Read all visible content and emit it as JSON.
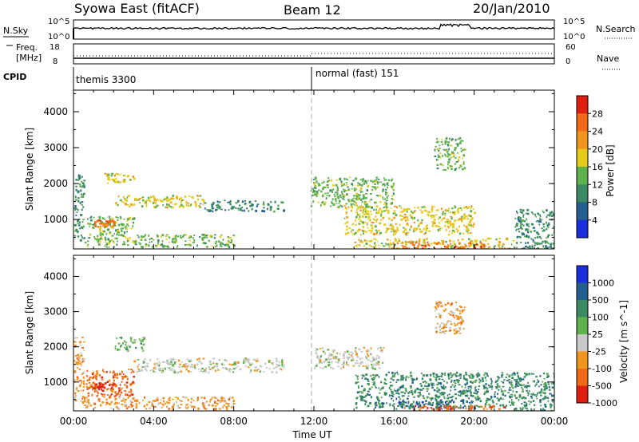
{
  "header": {
    "title": "Syowa East (fitACF)",
    "beam": "Beam 12",
    "date": "20/Jan/2010"
  },
  "sky_panel": {
    "left_label": "N.Sky",
    "left_ticks": [
      "10^5",
      "10^0"
    ],
    "right_label": "N.Search",
    "right_ticks": [
      "10^5",
      "10^0"
    ]
  },
  "freq_panel": {
    "left_label_1": "Freq.",
    "left_label_2": "[MHz]",
    "left_ticks": [
      "18",
      "8"
    ],
    "right_label": "Nave",
    "right_ticks": [
      "60",
      "0"
    ]
  },
  "cpid": {
    "label": "CPID",
    "modes": [
      {
        "name": "themis 3300",
        "start_hour": 0
      },
      {
        "name": "normal (fast) 151",
        "start_hour": 12
      }
    ]
  },
  "chart_data": [
    {
      "type": "heatmap",
      "name": "Power",
      "ylabel": "Slant Range [km]",
      "yticks": [
        "1000",
        "2000",
        "3000",
        "4000"
      ],
      "ylim": [
        180,
        4600
      ],
      "xlim": [
        0,
        24
      ],
      "colorbar_label": "Power [dB]",
      "colorbar_ticks": [
        "4",
        "8",
        "12",
        "16",
        "20",
        "24",
        "28"
      ],
      "colors": [
        "#1c2fe0",
        "#255f8f",
        "#3a8a62",
        "#5fb14c",
        "#e5cc1a",
        "#f0961e",
        "#f06a17",
        "#e01f10"
      ],
      "features": [
        {
          "hours": [
            0.0,
            0.5
          ],
          "range_km": [
            400,
            2300
          ],
          "power_db": 8
        },
        {
          "hours": [
            0.6,
            3.0
          ],
          "range_km": [
            600,
            1100
          ],
          "power_db": 14
        },
        {
          "hours": [
            1.0,
            2.0
          ],
          "range_km": [
            800,
            1000
          ],
          "power_db": 26
        },
        {
          "hours": [
            1.5,
            3.0
          ],
          "range_km": [
            2000,
            2300
          ],
          "power_db": 16
        },
        {
          "hours": [
            2.0,
            6.5
          ],
          "range_km": [
            1350,
            1700
          ],
          "power_db": 18
        },
        {
          "hours": [
            0.5,
            8.0
          ],
          "range_km": [
            250,
            600
          ],
          "power_db": 12
        },
        {
          "hours": [
            6.5,
            10.5
          ],
          "range_km": [
            1250,
            1550
          ],
          "power_db": 10
        },
        {
          "hours": [
            11.8,
            16.0
          ],
          "range_km": [
            1350,
            2200
          ],
          "power_db": 12
        },
        {
          "hours": [
            13.5,
            20.0
          ],
          "range_km": [
            600,
            1400
          ],
          "power_db": 16
        },
        {
          "hours": [
            14.0,
            22.0
          ],
          "range_km": [
            180,
            500
          ],
          "power_db": 18
        },
        {
          "hours": [
            16.0,
            20.5
          ],
          "range_km": [
            180,
            400
          ],
          "power_db": 27
        },
        {
          "hours": [
            18.0,
            19.5
          ],
          "range_km": [
            2400,
            3300
          ],
          "power_db": 12
        },
        {
          "hours": [
            22.0,
            24.0
          ],
          "range_km": [
            200,
            1300
          ],
          "power_db": 8
        }
      ]
    },
    {
      "type": "heatmap",
      "name": "Velocity",
      "xlabel": "Time UT",
      "ylabel": "Slant Range [km]",
      "xticks": [
        "00:00",
        "04:00",
        "08:00",
        "12:00",
        "16:00",
        "20:00",
        "00:00"
      ],
      "yticks": [
        "1000",
        "2000",
        "3000",
        "4000"
      ],
      "ylim": [
        180,
        4600
      ],
      "xlim": [
        0,
        24
      ],
      "colorbar_label": "Velocity [m s^-1]",
      "colorbar_ticks": [
        "1000",
        "500",
        "100",
        "25",
        "-25",
        "-100",
        "-500",
        "-1000"
      ],
      "colors": [
        "#1c2fe0",
        "#255f8f",
        "#3a8a62",
        "#5fb14c",
        "#c8c8c8",
        "#f0961e",
        "#f06a17",
        "#e01f10"
      ],
      "features": [
        {
          "hours": [
            0.0,
            0.5
          ],
          "range_km": [
            400,
            2300
          ],
          "velocity_ms": -30
        },
        {
          "hours": [
            0.6,
            3.0
          ],
          "range_km": [
            600,
            1400
          ],
          "velocity_ms": -300
        },
        {
          "hours": [
            1.0,
            2.0
          ],
          "range_km": [
            800,
            1000
          ],
          "velocity_ms": -700
        },
        {
          "hours": [
            2.0,
            3.5
          ],
          "range_km": [
            1900,
            2300
          ],
          "velocity_ms": 60
        },
        {
          "hours": [
            3.0,
            10.5
          ],
          "range_km": [
            1300,
            1700
          ],
          "velocity_ms": 0
        },
        {
          "hours": [
            0.5,
            8.0
          ],
          "range_km": [
            250,
            600
          ],
          "velocity_ms": -80
        },
        {
          "hours": [
            12.0,
            15.5
          ],
          "range_km": [
            1400,
            2000
          ],
          "velocity_ms": 0
        },
        {
          "hours": [
            14.0,
            22.0
          ],
          "range_km": [
            300,
            1300
          ],
          "velocity_ms": 400
        },
        {
          "hours": [
            16.0,
            20.0
          ],
          "range_km": [
            250,
            500
          ],
          "velocity_ms": 900
        },
        {
          "hours": [
            16.5,
            21.5
          ],
          "range_km": [
            200,
            350
          ],
          "velocity_ms": -150
        },
        {
          "hours": [
            18.0,
            19.5
          ],
          "range_km": [
            2400,
            3300
          ],
          "velocity_ms": -60
        },
        {
          "hours": [
            22.0,
            24.0
          ],
          "range_km": [
            200,
            1300
          ],
          "velocity_ms": 100
        }
      ]
    }
  ]
}
